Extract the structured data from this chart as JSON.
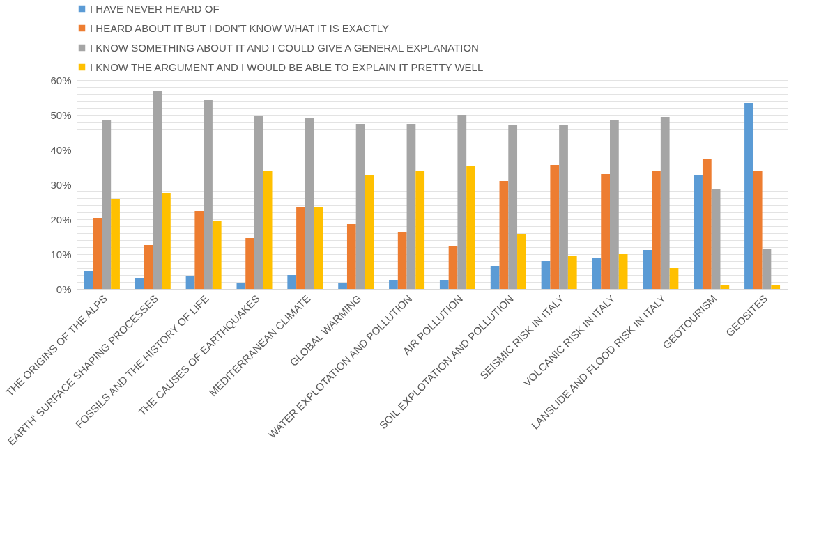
{
  "chart_data": {
    "type": "bar",
    "categories": [
      "THE ORIGINS OF THE ALPS",
      "EARTH' SURFACE SHAPING PROCESSES",
      "FOSSILS AND THE HISTORY OF LIFE",
      "THE CAUSES OF EARTHQUAKES",
      "MEDITERRANEAN CLIMATE",
      "GLOBAL WARMING",
      "WATER EXPLOTATION AND POLLUTION",
      "AIR POLLUTION",
      "SOIL EXPLOTATION AND POLLUTION",
      "SEISMIC RISK IN ITALY",
      "VOLCANIC RISK IN ITALY",
      "LANSLIDE AND FLOOD RISK IN ITALY",
      "GEOTOURISM",
      "GEOSITES"
    ],
    "series": [
      {
        "name": "I HAVE NEVER HEARD OF",
        "color": "#5b9bd5",
        "values": [
          5.2,
          3.0,
          3.8,
          1.8,
          4.0,
          1.8,
          2.6,
          2.6,
          6.6,
          8.0,
          8.8,
          11.2,
          32.8,
          53.4
        ]
      },
      {
        "name": "I HEARD ABOUT IT BUT I DON'T KNOW WHAT IT IS EXACTLY",
        "color": "#ed7d31",
        "values": [
          20.4,
          12.6,
          22.4,
          14.6,
          23.4,
          18.6,
          16.4,
          12.4,
          31.0,
          35.6,
          33.0,
          33.8,
          37.4,
          34.0
        ]
      },
      {
        "name": "I KNOW SOMETHING ABOUT IT AND I COULD GIVE A GENERAL EXPLANATION",
        "color": "#a5a5a5",
        "values": [
          48.6,
          56.8,
          54.2,
          49.6,
          49.0,
          47.4,
          47.4,
          50.0,
          47.0,
          47.0,
          48.4,
          49.4,
          28.8,
          11.6
        ]
      },
      {
        "name": "I KNOW THE ARGUMENT AND I WOULD BE ABLE TO EXPLAIN IT PRETTY WELL",
        "color": "#ffc000",
        "values": [
          25.8,
          27.6,
          19.4,
          34.0,
          23.6,
          32.6,
          34.0,
          35.4,
          15.8,
          9.6,
          10.0,
          6.0,
          1.0,
          1.0
        ]
      }
    ],
    "ylim": [
      0,
      60
    ],
    "yticks": [
      {
        "value": 0,
        "label": "0%"
      },
      {
        "value": 2,
        "label": null
      },
      {
        "value": 4,
        "label": null
      },
      {
        "value": 6,
        "label": null
      },
      {
        "value": 8,
        "label": null
      },
      {
        "value": 10,
        "label": "10%"
      },
      {
        "value": 12,
        "label": null
      },
      {
        "value": 14,
        "label": null
      },
      {
        "value": 16,
        "label": null
      },
      {
        "value": 18,
        "label": null
      },
      {
        "value": 20,
        "label": "20%"
      },
      {
        "value": 22,
        "label": null
      },
      {
        "value": 24,
        "label": null
      },
      {
        "value": 26,
        "label": null
      },
      {
        "value": 28,
        "label": null
      },
      {
        "value": 30,
        "label": "30%"
      },
      {
        "value": 32,
        "label": null
      },
      {
        "value": 34,
        "label": null
      },
      {
        "value": 36,
        "label": null
      },
      {
        "value": 38,
        "label": null
      },
      {
        "value": 40,
        "label": "40%"
      },
      {
        "value": 42,
        "label": null
      },
      {
        "value": 44,
        "label": null
      },
      {
        "value": 46,
        "label": null
      },
      {
        "value": 48,
        "label": null
      },
      {
        "value": 50,
        "label": "50%"
      },
      {
        "value": 52,
        "label": null
      },
      {
        "value": 54,
        "label": null
      },
      {
        "value": 56,
        "label": null
      },
      {
        "value": 58,
        "label": null
      },
      {
        "value": 60,
        "label": "60%"
      }
    ],
    "grid": "y",
    "legend": "top"
  }
}
